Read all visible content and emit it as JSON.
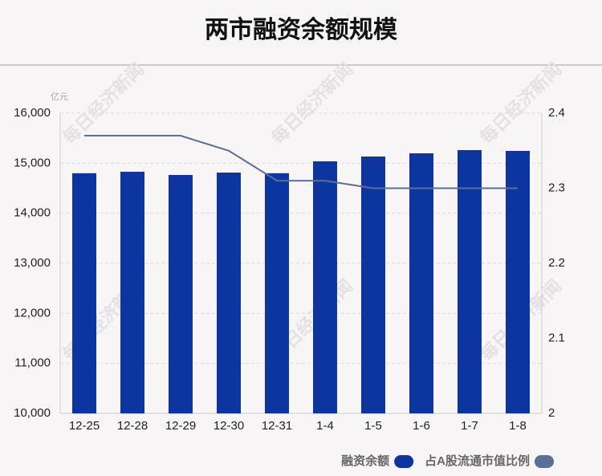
{
  "chart_data": {
    "type": "bar",
    "title": "两市融资余额规模",
    "y_unit": "亿元",
    "watermark": "每日经济新闻",
    "categories": [
      "12-25",
      "12-28",
      "12-29",
      "12-30",
      "12-31",
      "1-4",
      "1-5",
      "1-6",
      "1-7",
      "1-8"
    ],
    "series": [
      {
        "name": "融资余额",
        "type": "bar",
        "color": "#0d35a0",
        "values": [
          14800,
          14830,
          14765,
          14813,
          14800,
          15038,
          15134,
          15198,
          15262,
          15246
        ]
      },
      {
        "name": "占A股流通市值比例",
        "type": "line",
        "axis": "y2",
        "color": "#5a6e9a",
        "values": [
          2.37,
          2.37,
          2.37,
          2.35,
          2.31,
          2.31,
          2.3,
          2.3,
          2.3,
          2.3
        ]
      }
    ],
    "ylim": [
      10000,
      16000
    ],
    "yticks": [
      {
        "value": 10000,
        "label": "10,000"
      },
      {
        "value": 11000,
        "label": "11,000"
      },
      {
        "value": 12000,
        "label": "12,000"
      },
      {
        "value": 13000,
        "label": "13,000"
      },
      {
        "value": 14000,
        "label": "14,000"
      },
      {
        "value": 15000,
        "label": "15,000"
      },
      {
        "value": 16000,
        "label": "16,000"
      }
    ],
    "y2lim": [
      2,
      2.4
    ],
    "y2ticks": [
      2,
      2.1,
      2.2,
      2.3,
      2.4
    ],
    "grid": true,
    "legend": "bottom-right"
  }
}
